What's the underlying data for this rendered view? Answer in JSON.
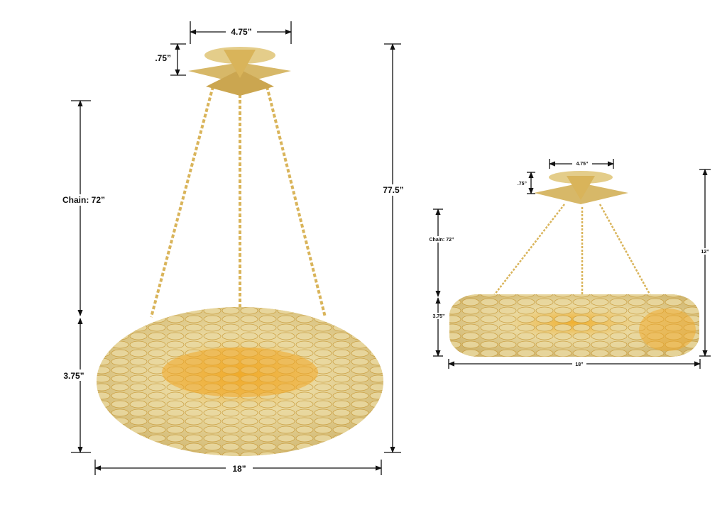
{
  "pendant_view": {
    "canopy_width": "4.75”",
    "canopy_height": ".75”",
    "chain_length": "Chain: 72”",
    "body_height": "3.75”",
    "overall_height": "77.5”",
    "body_width": "18”"
  },
  "semi_flush_view": {
    "canopy_width": "4.75”",
    "canopy_height": ".75”",
    "chain_length": "Chain: 72”",
    "body_height": "3.75”",
    "overall_height": "12”",
    "body_width": "18”"
  },
  "colors": {
    "gold": "#d9b45a",
    "gold_light": "#ead9a0",
    "amber": "#e8a020",
    "line": "#111111"
  }
}
